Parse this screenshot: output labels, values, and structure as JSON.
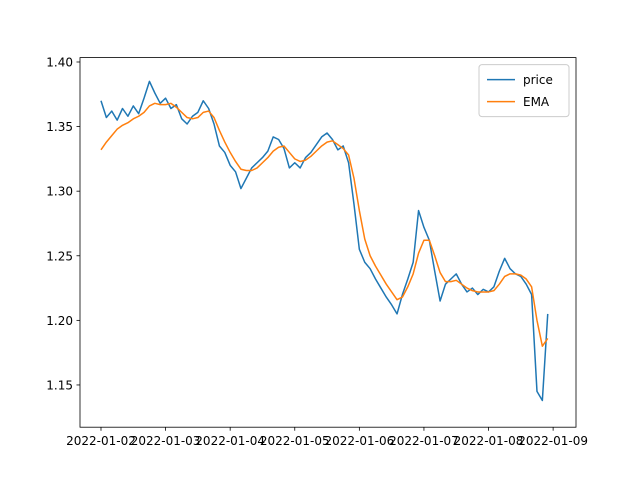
{
  "chart_data": {
    "type": "line",
    "x": [
      "2022-01-02 00:00",
      "2022-01-02 02:00",
      "2022-01-02 04:00",
      "2022-01-02 06:00",
      "2022-01-02 08:00",
      "2022-01-02 10:00",
      "2022-01-02 12:00",
      "2022-01-02 14:00",
      "2022-01-02 16:00",
      "2022-01-02 18:00",
      "2022-01-02 20:00",
      "2022-01-02 22:00",
      "2022-01-03 00:00",
      "2022-01-03 02:00",
      "2022-01-03 04:00",
      "2022-01-03 06:00",
      "2022-01-03 08:00",
      "2022-01-03 10:00",
      "2022-01-03 12:00",
      "2022-01-03 14:00",
      "2022-01-03 16:00",
      "2022-01-03 18:00",
      "2022-01-03 20:00",
      "2022-01-03 22:00",
      "2022-01-04 00:00",
      "2022-01-04 02:00",
      "2022-01-04 04:00",
      "2022-01-04 06:00",
      "2022-01-04 08:00",
      "2022-01-04 10:00",
      "2022-01-04 12:00",
      "2022-01-04 14:00",
      "2022-01-04 16:00",
      "2022-01-04 18:00",
      "2022-01-04 20:00",
      "2022-01-04 22:00",
      "2022-01-05 00:00",
      "2022-01-05 02:00",
      "2022-01-05 04:00",
      "2022-01-05 06:00",
      "2022-01-05 08:00",
      "2022-01-05 10:00",
      "2022-01-05 12:00",
      "2022-01-05 14:00",
      "2022-01-05 16:00",
      "2022-01-05 18:00",
      "2022-01-05 20:00",
      "2022-01-05 22:00",
      "2022-01-06 00:00",
      "2022-01-06 02:00",
      "2022-01-06 04:00",
      "2022-01-06 06:00",
      "2022-01-06 08:00",
      "2022-01-06 10:00",
      "2022-01-06 12:00",
      "2022-01-06 14:00",
      "2022-01-06 16:00",
      "2022-01-06 18:00",
      "2022-01-06 20:00",
      "2022-01-06 22:00",
      "2022-01-07 00:00",
      "2022-01-07 02:00",
      "2022-01-07 04:00",
      "2022-01-07 06:00",
      "2022-01-07 08:00",
      "2022-01-07 10:00",
      "2022-01-07 12:00",
      "2022-01-07 14:00",
      "2022-01-07 16:00",
      "2022-01-07 18:00",
      "2022-01-07 20:00",
      "2022-01-07 22:00",
      "2022-01-08 00:00",
      "2022-01-08 02:00",
      "2022-01-08 04:00",
      "2022-01-08 06:00",
      "2022-01-08 08:00",
      "2022-01-08 10:00",
      "2022-01-08 12:00",
      "2022-01-08 14:00",
      "2022-01-08 16:00",
      "2022-01-08 18:00",
      "2022-01-08 20:00",
      "2022-01-08 22:00"
    ],
    "series": [
      {
        "name": "price",
        "color": "#1f77b4",
        "values": [
          1.37,
          1.357,
          1.362,
          1.355,
          1.364,
          1.358,
          1.366,
          1.36,
          1.372,
          1.385,
          1.376,
          1.368,
          1.372,
          1.364,
          1.367,
          1.356,
          1.352,
          1.358,
          1.361,
          1.37,
          1.364,
          1.352,
          1.335,
          1.33,
          1.32,
          1.315,
          1.302,
          1.31,
          1.318,
          1.322,
          1.326,
          1.331,
          1.342,
          1.34,
          1.333,
          1.318,
          1.322,
          1.318,
          1.326,
          1.33,
          1.336,
          1.342,
          1.345,
          1.34,
          1.332,
          1.335,
          1.322,
          1.29,
          1.255,
          1.245,
          1.24,
          1.232,
          1.225,
          1.218,
          1.212,
          1.205,
          1.22,
          1.232,
          1.245,
          1.285,
          1.272,
          1.262,
          1.238,
          1.215,
          1.228,
          1.232,
          1.236,
          1.228,
          1.222,
          1.225,
          1.22,
          1.224,
          1.222,
          1.226,
          1.238,
          1.248,
          1.24,
          1.236,
          1.234,
          1.228,
          1.22,
          1.145,
          1.138,
          1.205
        ]
      },
      {
        "name": "EMA",
        "color": "#ff7f0e",
        "values": [
          1.332,
          1.338,
          1.343,
          1.348,
          1.351,
          1.353,
          1.356,
          1.358,
          1.361,
          1.366,
          1.368,
          1.367,
          1.367,
          1.368,
          1.365,
          1.361,
          1.357,
          1.356,
          1.357,
          1.361,
          1.362,
          1.357,
          1.347,
          1.338,
          1.33,
          1.323,
          1.317,
          1.316,
          1.316,
          1.318,
          1.322,
          1.326,
          1.331,
          1.334,
          1.335,
          1.33,
          1.325,
          1.323,
          1.324,
          1.327,
          1.331,
          1.335,
          1.338,
          1.339,
          1.336,
          1.333,
          1.328,
          1.31,
          1.285,
          1.263,
          1.25,
          1.242,
          1.235,
          1.228,
          1.222,
          1.216,
          1.218,
          1.226,
          1.236,
          1.252,
          1.262,
          1.262,
          1.25,
          1.237,
          1.23,
          1.23,
          1.231,
          1.228,
          1.225,
          1.223,
          1.222,
          1.222,
          1.222,
          1.223,
          1.228,
          1.234,
          1.236,
          1.236,
          1.235,
          1.232,
          1.226,
          1.2,
          1.18,
          1.186
        ]
      }
    ],
    "xlim": [
      "2022-01-01 16:12",
      "2022-01-09 08:30"
    ],
    "xticks": [
      "2022-01-02",
      "2022-01-03",
      "2022-01-04",
      "2022-01-05",
      "2022-01-06",
      "2022-01-07",
      "2022-01-08",
      "2022-01-09"
    ],
    "ylim": [
      1.1173,
      1.4034
    ],
    "yticks": [
      1.15,
      {
        "value": 1.2,
        "label": "1.20"
      },
      1.25,
      {
        "value": 1.3,
        "label": "1.30"
      },
      1.35,
      {
        "value": 1.4,
        "label": "1.40"
      }
    ],
    "legend": "upper right",
    "grid": false
  }
}
